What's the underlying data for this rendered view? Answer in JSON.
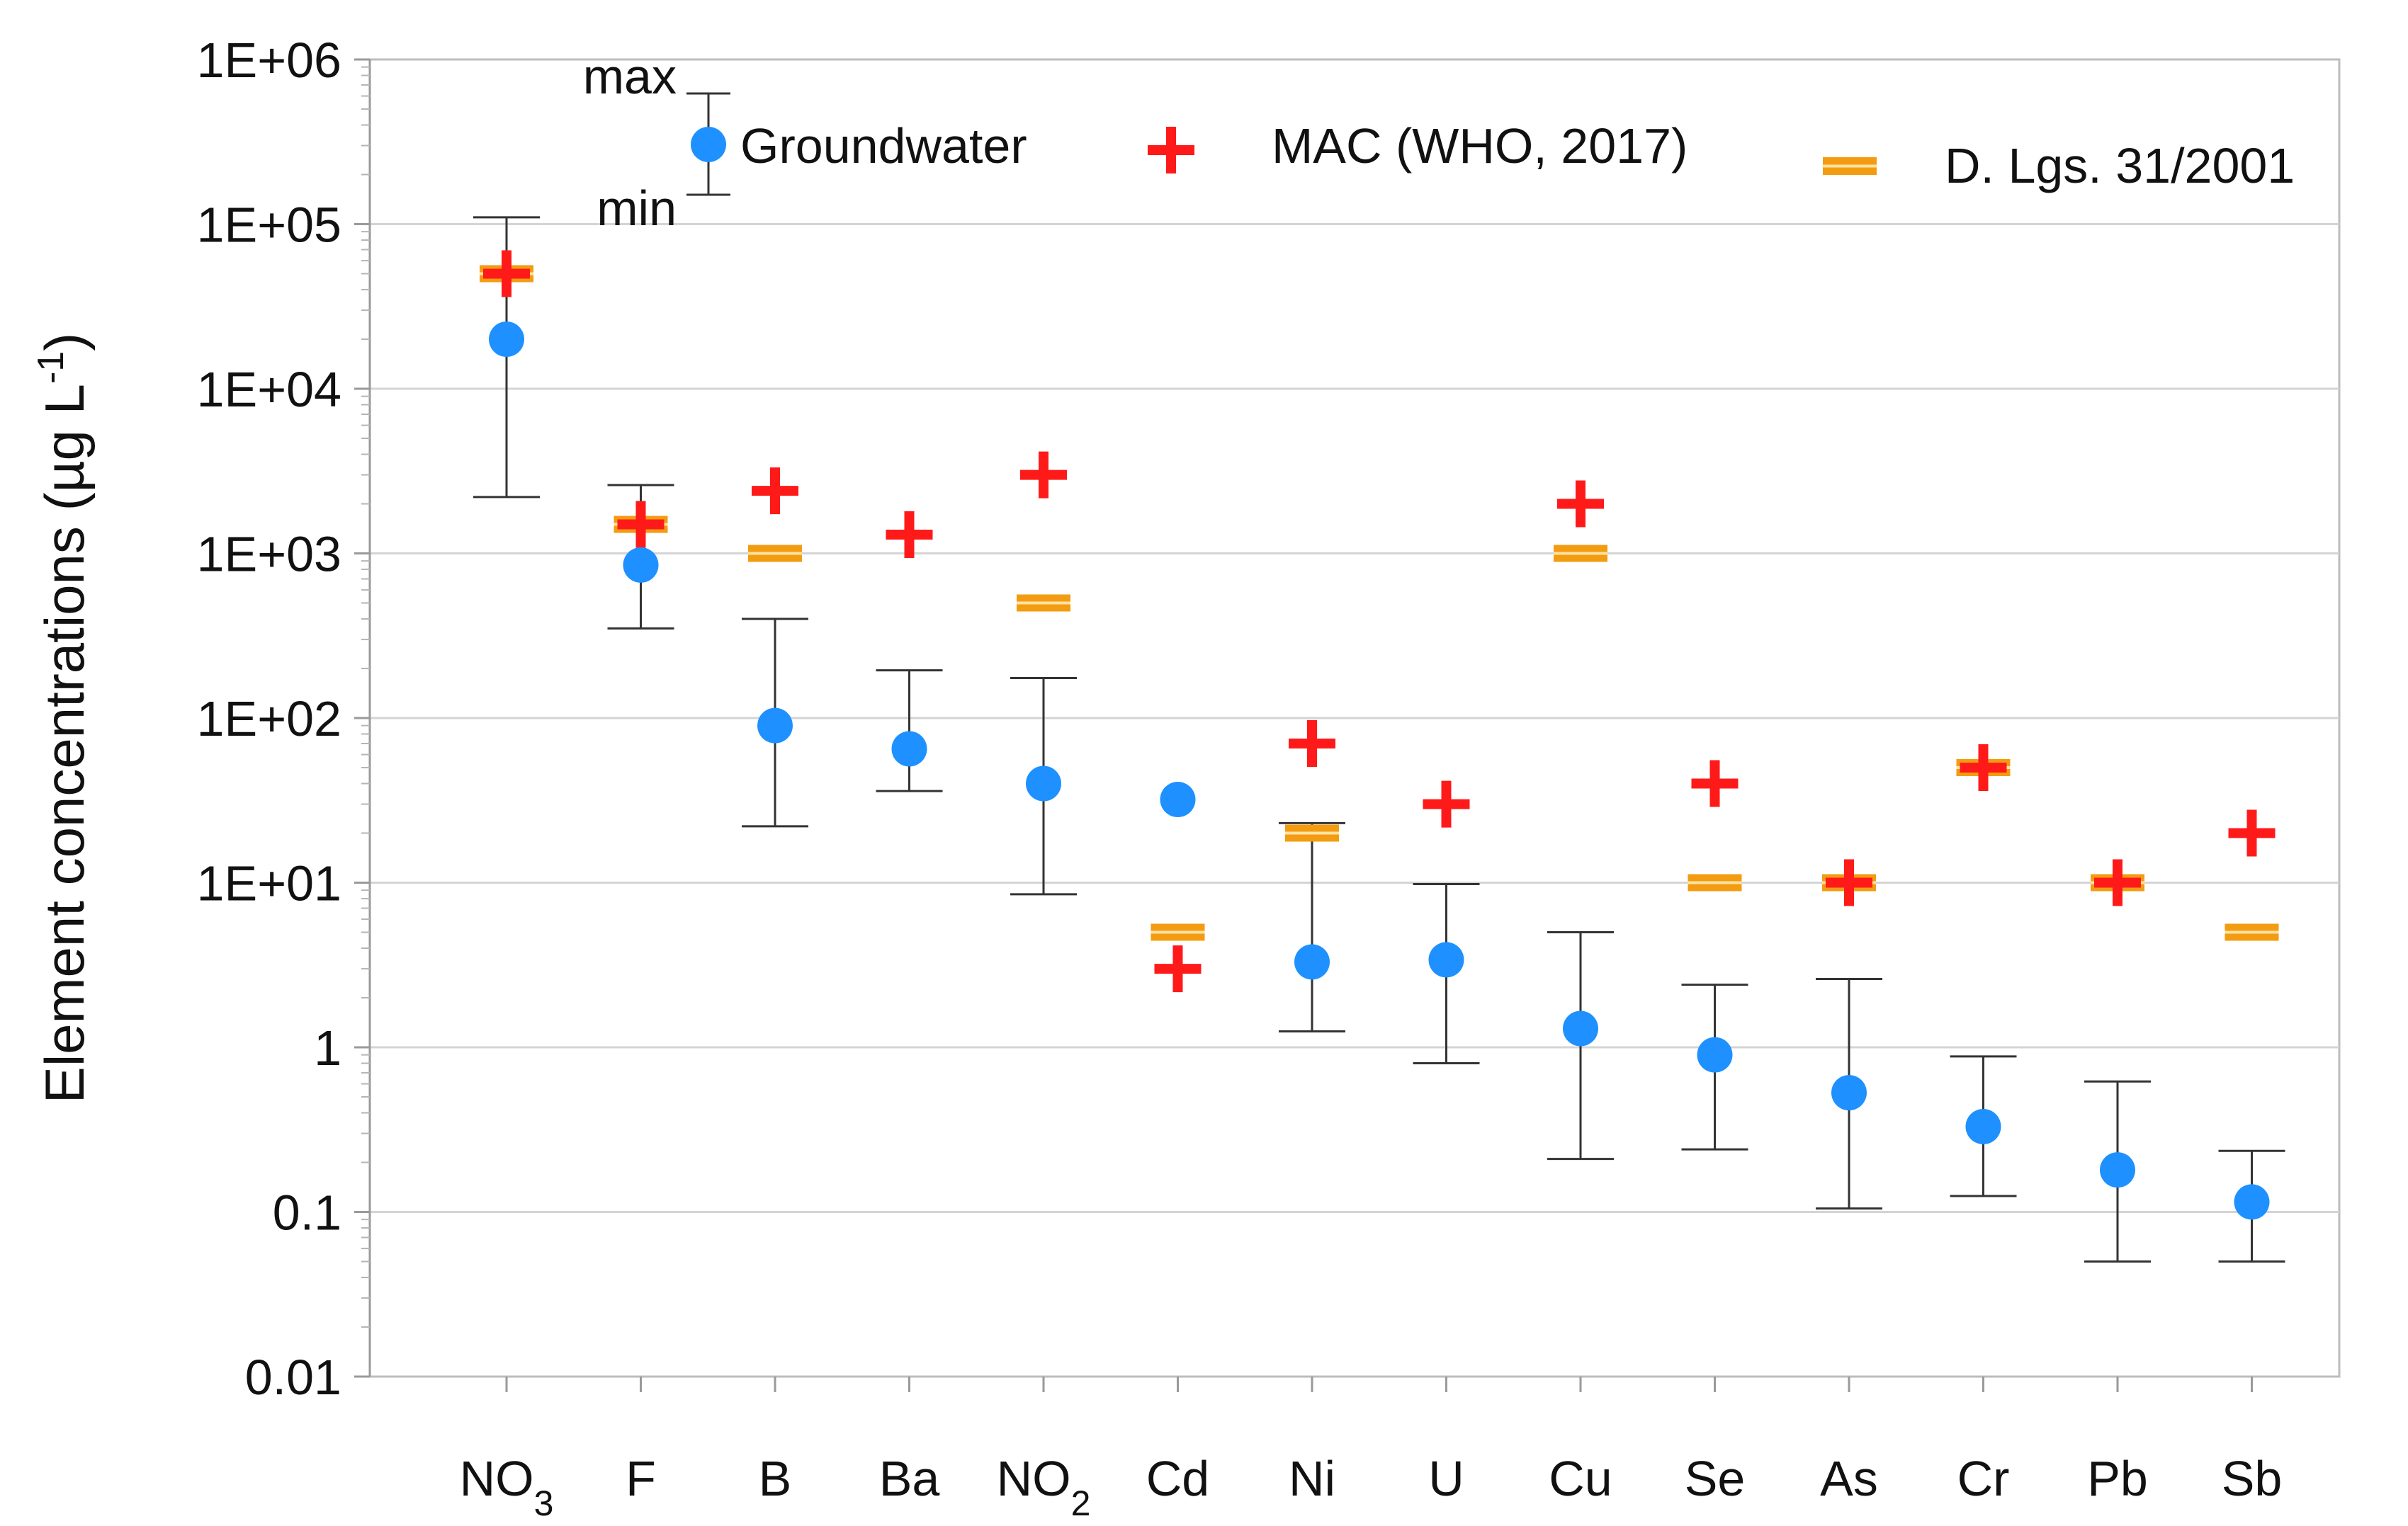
{
  "chart_data": {
    "type": "scatter",
    "scale": "log",
    "xlabel": "",
    "ylabel": {
      "main": "Element concentrations (µg L",
      "sup": "-1",
      "end": ")"
    },
    "ylim": [
      0.01,
      1000000
    ],
    "y_ticks": [
      {
        "value": 1000000,
        "label": "1E+06"
      },
      {
        "value": 100000,
        "label": "1E+05"
      },
      {
        "value": 10000,
        "label": "1E+04"
      },
      {
        "value": 1000,
        "label": "1E+03"
      },
      {
        "value": 100,
        "label": "1E+02"
      },
      {
        "value": 10,
        "label": "1E+01"
      },
      {
        "value": 1,
        "label": "1"
      },
      {
        "value": 0.1,
        "label": "0.1"
      },
      {
        "value": 0.01,
        "label": "0.01"
      }
    ],
    "grid": "horizontal",
    "categories": [
      {
        "base": "NO",
        "sub": "3"
      },
      {
        "base": "F",
        "sub": ""
      },
      {
        "base": "B",
        "sub": ""
      },
      {
        "base": "Ba",
        "sub": ""
      },
      {
        "base": "NO",
        "sub": "2"
      },
      {
        "base": "Cd",
        "sub": ""
      },
      {
        "base": "Ni",
        "sub": ""
      },
      {
        "base": "U",
        "sub": ""
      },
      {
        "base": "Cu",
        "sub": ""
      },
      {
        "base": "Se",
        "sub": ""
      },
      {
        "base": "As",
        "sub": ""
      },
      {
        "base": "Cr",
        "sub": ""
      },
      {
        "base": "Pb",
        "sub": ""
      },
      {
        "base": "Sb",
        "sub": ""
      }
    ],
    "series": [
      {
        "name": "Groundwater",
        "marker": "circle",
        "color": "#1e90ff",
        "values": [
          20000,
          850,
          90,
          65,
          40,
          32,
          3.3,
          3.4,
          1.3,
          0.9,
          0.53,
          0.33,
          0.18,
          0.115
        ],
        "min": [
          2200,
          350,
          22,
          36,
          8.5,
          null,
          1.25,
          0.8,
          0.21,
          0.24,
          0.105,
          0.125,
          0.05,
          0.05
        ],
        "max": [
          110000,
          2600,
          400,
          195,
          175,
          null,
          23,
          9.8,
          5.0,
          2.4,
          2.6,
          0.88,
          0.62,
          0.235
        ]
      },
      {
        "name": "MAC (WHO, 2017)",
        "marker": "plus",
        "color": "#ff1a1a",
        "values": [
          50000,
          1500,
          2400,
          1300,
          3000,
          3,
          70,
          30,
          2000,
          40,
          10,
          50,
          10,
          20
        ]
      },
      {
        "name": "D. Lgs. 31/2001",
        "marker": "double-dash",
        "color": "#f39c12",
        "values": [
          50000,
          1500,
          1000,
          null,
          500,
          5,
          20,
          null,
          1000,
          10,
          10,
          50,
          10,
          5
        ]
      }
    ],
    "legend": {
      "placement": "top",
      "range_key": {
        "max": "max",
        "min": "min"
      },
      "items": [
        "Groundwater",
        "MAC (WHO, 2017)",
        "D. Lgs. 31/2001"
      ]
    }
  }
}
